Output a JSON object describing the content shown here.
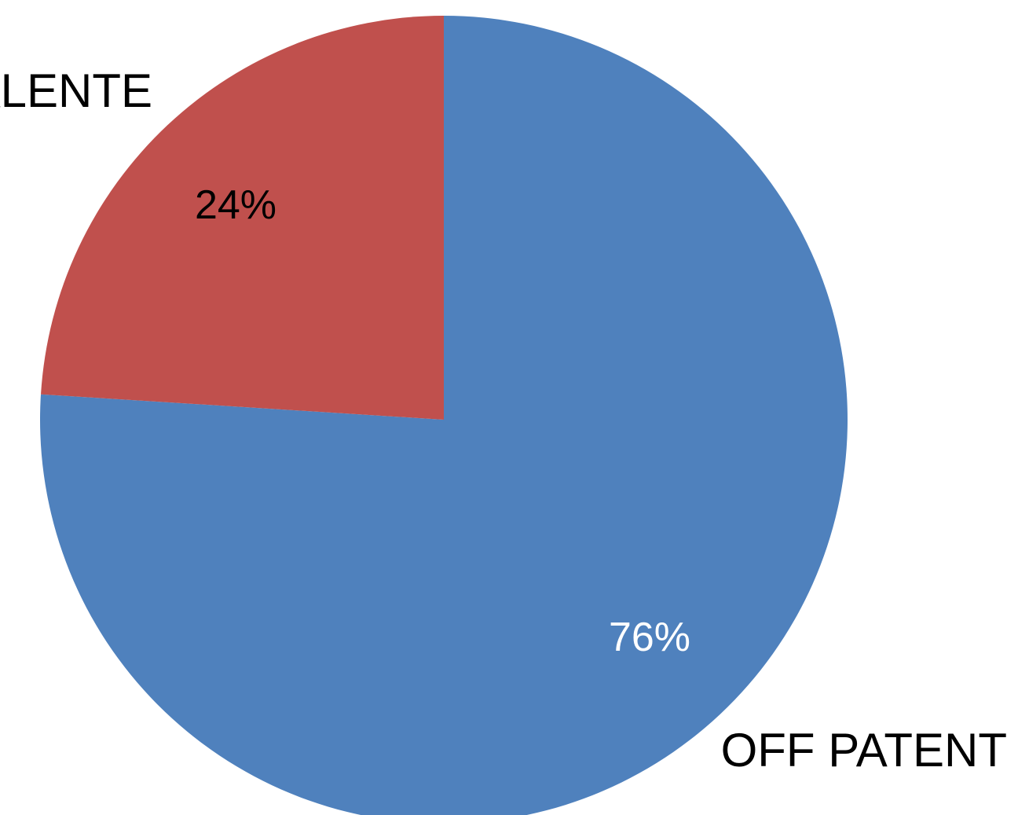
{
  "chart_data": {
    "type": "pie",
    "slices": [
      {
        "label": "OFF PATENT",
        "value": 76,
        "value_label": "76%",
        "color": "#4F81BD",
        "label_color": "#ffffff"
      },
      {
        "label": "EQUIVALENTE",
        "value": 24,
        "value_label": "24%",
        "color": "#C0504D",
        "label_color": "#000000"
      }
    ],
    "start": "12 o'clock",
    "direction": "clockwise",
    "legend": "none",
    "category_labels": "outside slices"
  }
}
